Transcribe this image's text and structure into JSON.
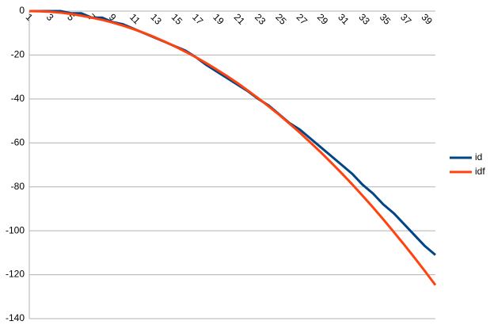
{
  "chart_data": {
    "type": "line",
    "categories": [
      "1",
      null,
      "3",
      null,
      "5",
      null,
      "7",
      null,
      "9",
      null,
      "11",
      null,
      "13",
      null,
      "15",
      null,
      "17",
      null,
      "19",
      null,
      "21",
      null,
      "23",
      null,
      "25",
      null,
      "27",
      null,
      "29",
      null,
      "31",
      null,
      "33",
      null,
      "35",
      null,
      "37",
      null,
      "39",
      null
    ],
    "series": [
      {
        "name": "id",
        "color": "#004586",
        "values": [
          0,
          0,
          0,
          0,
          -1,
          -1,
          -3,
          -3,
          -5,
          -6,
          -8,
          -10,
          -12,
          -14,
          -16,
          -18,
          -21,
          -24.5,
          -27.5,
          -30.5,
          -33.5,
          -36.5,
          -40,
          -43,
          -47,
          -51,
          -54,
          -58,
          -62,
          -66,
          -70,
          -74,
          -79,
          -83,
          -88,
          -92,
          -97,
          -102,
          -107,
          -111
        ]
      },
      {
        "name": "idf",
        "color": "#ff420e",
        "values": [
          0,
          -0.1,
          -0.3,
          -0.7,
          -1.3,
          -2.1,
          -3.0,
          -4.0,
          -5.2,
          -6.6,
          -8.2,
          -9.9,
          -11.8,
          -13.9,
          -16.1,
          -18.5,
          -21.0,
          -23.7,
          -26.6,
          -29.6,
          -32.8,
          -36.2,
          -39.7,
          -43.4,
          -47.2,
          -51.3,
          -55.4,
          -59.8,
          -64.3,
          -69.0,
          -73.8,
          -78.8,
          -84.0,
          -89.3,
          -94.8,
          -100.5,
          -106.3,
          -112.3,
          -118.4,
          -124.7
        ]
      }
    ],
    "ylim": [
      -140,
      0
    ],
    "yticks": [
      -140,
      -120,
      -100,
      -80,
      -60,
      -40,
      -20,
      0
    ],
    "grid": true,
    "legend": "right"
  }
}
